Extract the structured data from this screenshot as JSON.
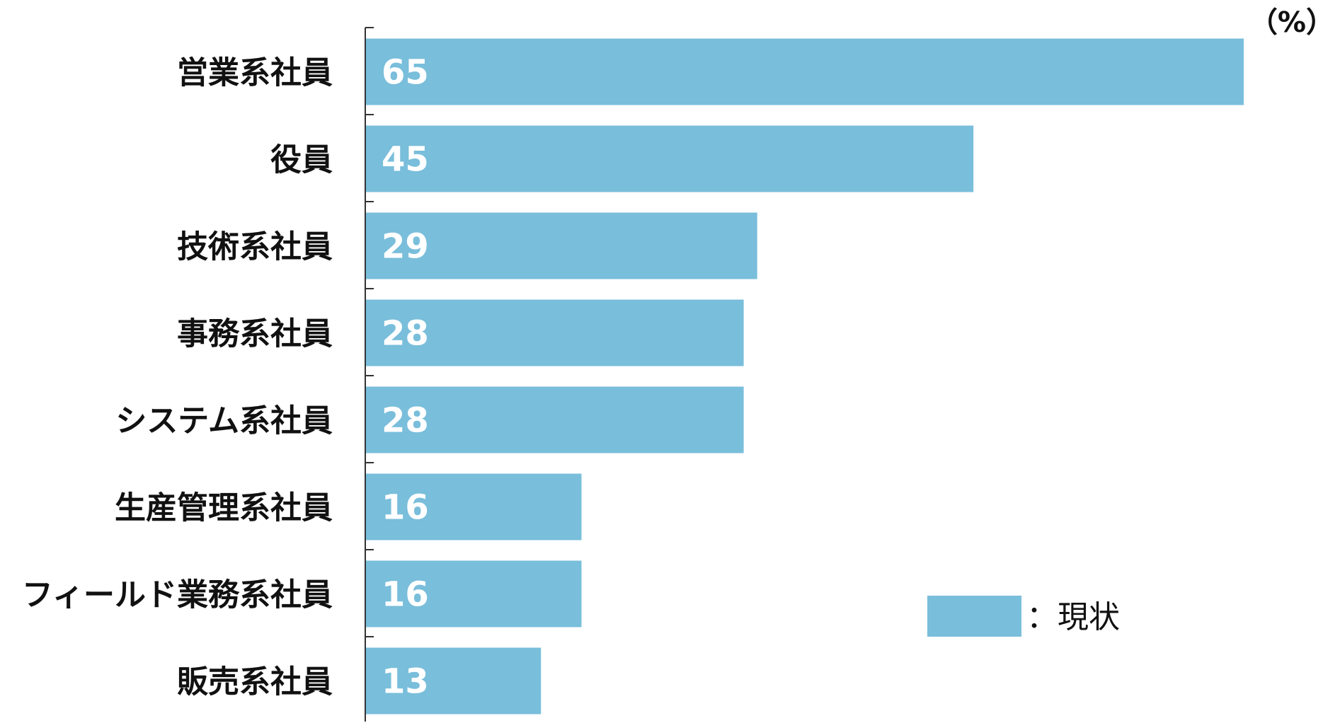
{
  "chart_data": {
    "type": "bar",
    "orientation": "horizontal",
    "categories": [
      "営業系社員",
      "役員",
      "技術系社員",
      "事務系社員",
      "システム系社員",
      "生産管理系社員",
      "フィールド業務系社員",
      "販売系社員"
    ],
    "series": [
      {
        "name": "：現状",
        "values": [
          65,
          45,
          29,
          28,
          28,
          16,
          16,
          13
        ],
        "color": "#79bedb"
      }
    ],
    "value_labels": [
      "65",
      "45",
      "29",
      "28",
      "28",
      "16",
      "16",
      "13"
    ],
    "unit_label": "（%）",
    "xlim": [
      0,
      65
    ],
    "grid": false,
    "legend_position": "bottom-right"
  }
}
